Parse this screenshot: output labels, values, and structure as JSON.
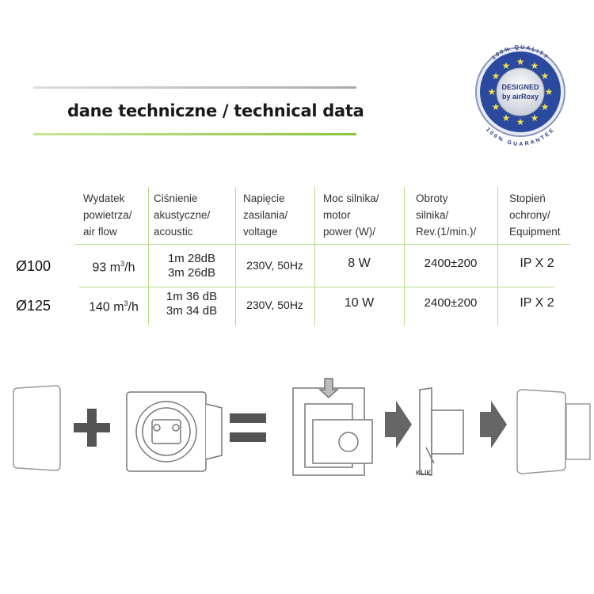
{
  "title": "dane techniczne / technical data",
  "badge": {
    "top": "100% QUALITY",
    "line1": "DESIGNED",
    "line2": "by airRoxy",
    "bottom": "100% GUARANTEE"
  },
  "colors": {
    "accent_green": "#8cc63f",
    "gray_line": "#b0b0b0",
    "badge_blue": "#2a4aa0",
    "star": "#f5e14a"
  },
  "table": {
    "headers": [
      [
        "Wydatek",
        "powietrza/",
        "air flow"
      ],
      [
        "Ciśnienie",
        "akustyczne/",
        "acoustic"
      ],
      [
        "Napięcie",
        "zasilania/",
        "voltage"
      ],
      [
        "Moc silnika/",
        "motor",
        "power (W)/"
      ],
      [
        "Obroty",
        "silnika/",
        "Rev.(1/min.)/"
      ],
      [
        "Stopień",
        "ochrony/",
        "Equipment"
      ]
    ],
    "rows": [
      {
        "label": "Ø100",
        "airflow": "93 m",
        "airflow_sup": "3",
        "airflow_unit": "/h",
        "acoustic1": "1m 28dB",
        "acoustic2": "3m 26dB",
        "voltage": "230V, 50Hz",
        "power": "8 W",
        "rev": "2400±200",
        "ip": "IP X 2"
      },
      {
        "label": "Ø125",
        "airflow": "140 m",
        "airflow_sup": "3",
        "airflow_unit": "/h",
        "acoustic1": "1m 36 dB",
        "acoustic2": "3m 34 dB",
        "voltage": "230V, 50Hz",
        "power": "10 W",
        "rev": "2400±200",
        "ip": "IP X 2"
      }
    ]
  },
  "diagram": {
    "klik_label": "KLIK"
  }
}
